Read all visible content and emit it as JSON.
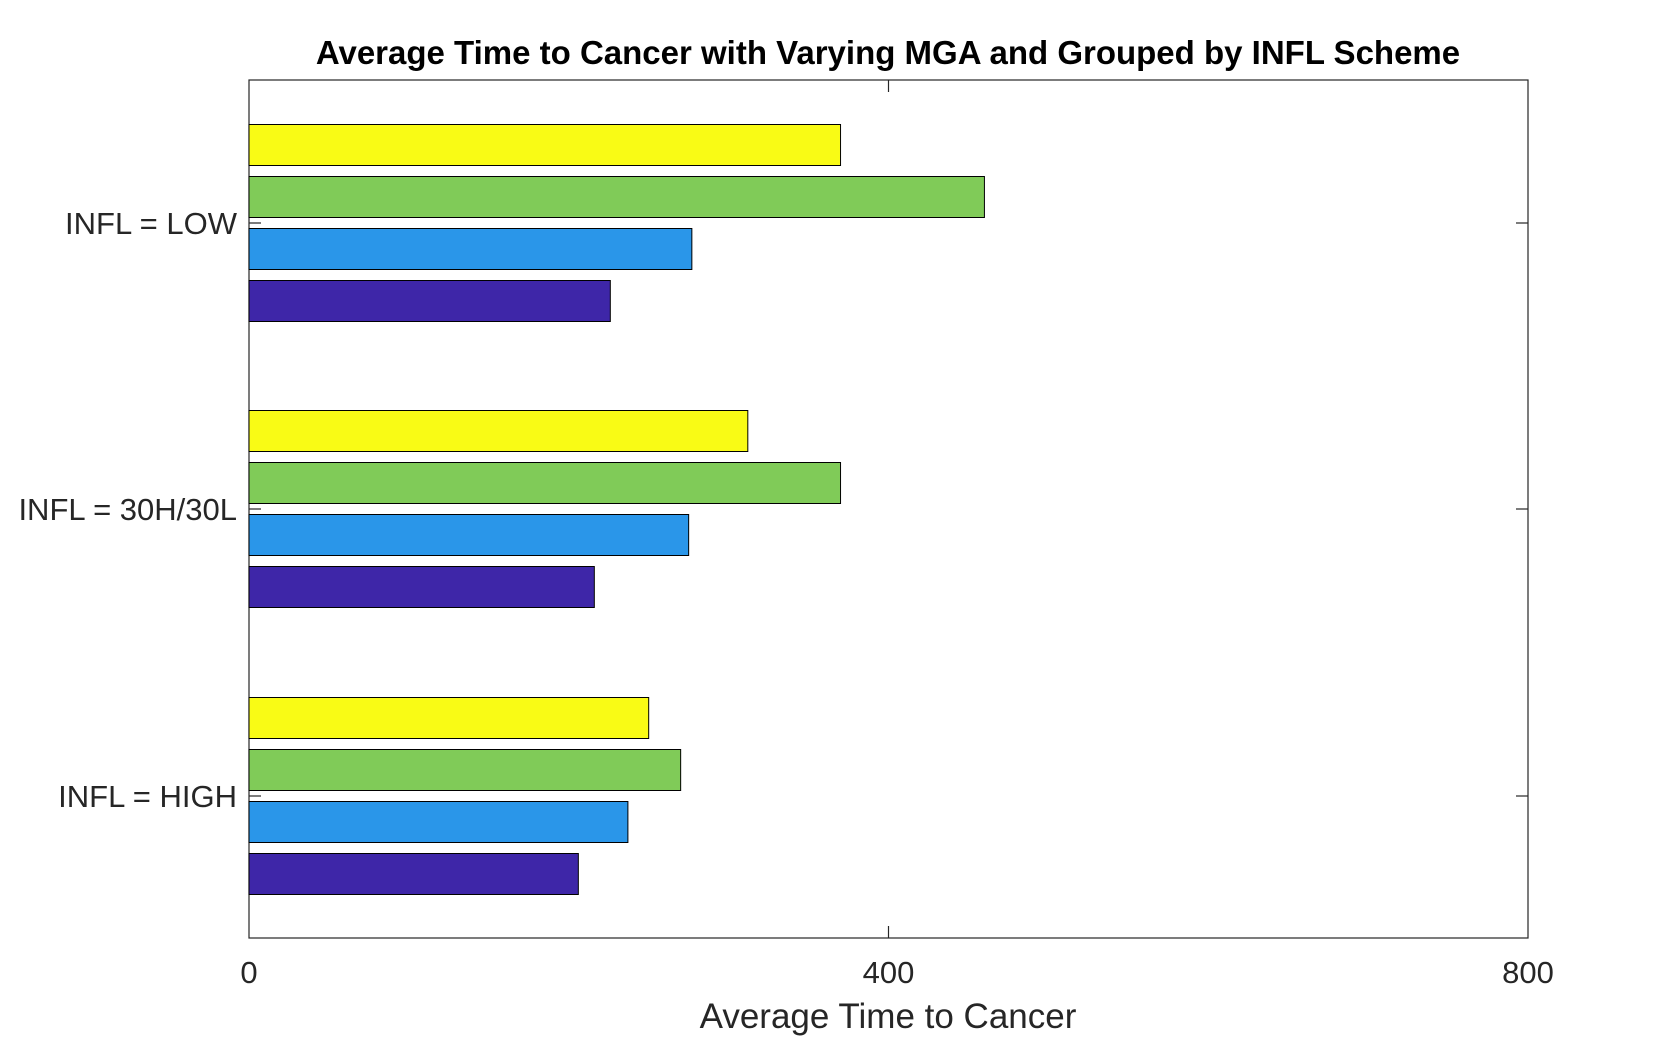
{
  "chart_data": {
    "type": "bar",
    "orientation": "horizontal",
    "title": "Average Time to Cancer with Varying MGA and Grouped by INFL Scheme",
    "xlabel": "Average Time to Cancer",
    "ylabel": "",
    "xlim": [
      0,
      800
    ],
    "xticks": [
      "0",
      "400",
      "800"
    ],
    "grid": false,
    "categories": [
      "INFL = LOW",
      "INFL = 30H/30L",
      "INFL = HIGH"
    ],
    "series": [
      {
        "color": "#3e26a8",
        "values": [
          226,
          216,
          206
        ]
      },
      {
        "color": "#2a96e9",
        "values": [
          277,
          275,
          237
        ]
      },
      {
        "color": "#80cb58",
        "values": [
          460,
          370,
          270
        ]
      },
      {
        "color": "#f9fb15",
        "values": [
          370,
          312,
          250
        ]
      }
    ]
  }
}
